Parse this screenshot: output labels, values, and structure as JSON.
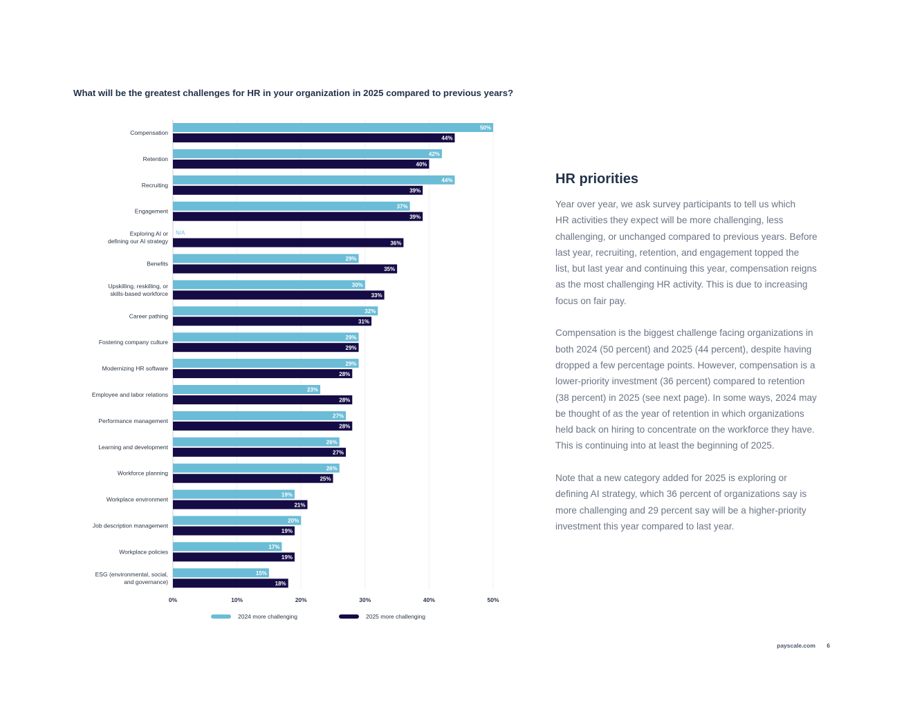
{
  "chart_data": {
    "type": "bar",
    "orientation": "horizontal",
    "title": "What will be the greatest challenges for HR in your organization in 2025 compared to previous years?",
    "categories": [
      [
        "Compensation"
      ],
      [
        "Retention"
      ],
      [
        "Recruiting"
      ],
      [
        "Engagement"
      ],
      [
        "Exploring AI or",
        "defining our AI strategy"
      ],
      [
        "Benefits"
      ],
      [
        "Upskilling, reskilling, or",
        "skills-based workforce"
      ],
      [
        "Career pathing"
      ],
      [
        "Fostering company culture"
      ],
      [
        "Modernizing HR software"
      ],
      [
        "Employee and labor relations"
      ],
      [
        "Performance management"
      ],
      [
        "Learning and development"
      ],
      [
        "Workforce planning"
      ],
      [
        "Workplace environment"
      ],
      [
        "Job description management"
      ],
      [
        "Workplace policies"
      ],
      [
        "ESG (environmental, social,",
        "and governance)"
      ]
    ],
    "series": [
      {
        "name": "2024 more challenging",
        "color": "#6bbcd6",
        "values": [
          50,
          42,
          44,
          37,
          null,
          29,
          30,
          32,
          29,
          29,
          23,
          27,
          26,
          26,
          19,
          20,
          17,
          15
        ],
        "labels": [
          "50%",
          "42%",
          "44%",
          "37%",
          "N/A",
          "29%",
          "30%",
          "32%",
          "29%",
          "29%",
          "23%",
          "27%",
          "26%",
          "26%",
          "19%",
          "20%",
          "17%",
          "15%"
        ]
      },
      {
        "name": "2025 more challenging",
        "color": "#150b45",
        "values": [
          44,
          40,
          39,
          39,
          36,
          35,
          33,
          31,
          29,
          28,
          28,
          28,
          27,
          25,
          21,
          19,
          19,
          18
        ],
        "labels": [
          "44%",
          "40%",
          "39%",
          "39%",
          "36%",
          "35%",
          "33%",
          "31%",
          "29%",
          "28%",
          "28%",
          "28%",
          "27%",
          "25%",
          "21%",
          "19%",
          "19%",
          "18%"
        ]
      }
    ],
    "xlim": [
      0,
      50
    ],
    "xticks": [
      0,
      10,
      20,
      30,
      40,
      50
    ],
    "xtick_labels": [
      "0%",
      "10%",
      "20%",
      "30%",
      "40%",
      "50%"
    ],
    "grid": true,
    "legend_position": "bottom"
  },
  "side": {
    "title": "HR priorities",
    "paragraphs": [
      [
        "Year over year, we ask survey participants to tell us which",
        "HR activities they expect will be more challenging, less",
        "challenging, or unchanged compared to previous years. Before",
        "last year, recruiting, retention, and engagement topped the",
        "list, but last year and continuing this year, compensation reigns",
        "as the most challenging HR activity. This is due to increasing",
        "focus on fair pay."
      ],
      [
        "Compensation is the biggest challenge facing organizations in",
        "both 2024 (50 percent) and 2025 (44 percent), despite having",
        "dropped a few percentage points. However, compensation is a",
        "lower-priority investment (36 percent) compared to retention",
        "(38 percent) in 2025 (see next page). In some ways, 2024 may",
        "be thought of as the year of retention in which organizations",
        "held back on hiring to concentrate on the workforce they have.",
        "This is continuing into at least the beginning of 2025."
      ],
      [
        "Note that a new category added for 2025 is exploring or",
        "defining AI strategy, which 36 percent of organizations say is",
        "more challenging and 29 percent say will be a higher-priority",
        "investment this year compared to last year."
      ]
    ]
  },
  "footer": {
    "site": "payscale.com",
    "page": "6"
  }
}
